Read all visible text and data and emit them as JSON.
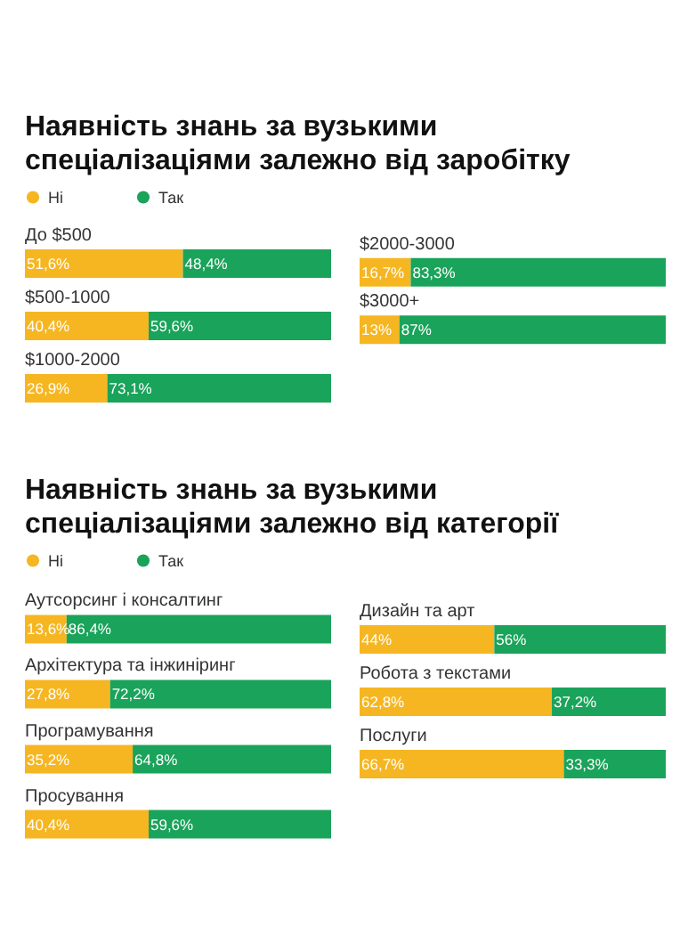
{
  "chart_data": [
    {
      "type": "bar",
      "title": "Наявність знань за вузькими спеціалізаціями залежно від заробітку",
      "categories": [
        "До $500",
        "$500-1000",
        "$1000-2000"
      ],
      "orientation": "horizontal",
      "stacked": true,
      "xlim": [
        0,
        100
      ],
      "tick_labels": false,
      "legend": "top left",
      "series": [
        {
          "name": "Ні",
          "color": "#f6b622",
          "values": [
            51.6,
            40.4,
            26.9
          ],
          "value_labels": [
            "51,6%",
            "40,4%",
            "26,9%"
          ]
        },
        {
          "name": "Так",
          "color": "#1aa35a",
          "values": [
            48.4,
            59.6,
            73.1
          ],
          "value_labels": [
            "48,4%",
            "59,6%",
            "73,1%"
          ]
        }
      ]
    },
    {
      "type": "bar",
      "categories": [
        "$2000-3000",
        "$3000+"
      ],
      "orientation": "horizontal",
      "stacked": true,
      "xlim": [
        0,
        100
      ],
      "tick_labels": false,
      "series": [
        {
          "color": "#f6b622",
          "values": [
            16.7,
            13
          ],
          "value_labels": [
            "16,7%",
            "13%"
          ]
        },
        {
          "color": "#1aa35a",
          "values": [
            83.3,
            87
          ],
          "value_labels": [
            "83,3%",
            "87%"
          ]
        }
      ]
    },
    {
      "type": "bar",
      "title": "Наявність знань за вузькими спеціалізаціями залежно від категорії",
      "categories": [
        "Аутсорсинг і консалтинг",
        "Архітектура та інжиніринг",
        "Програмування",
        "Просування"
      ],
      "orientation": "horizontal",
      "stacked": true,
      "xlim": [
        0,
        100
      ],
      "tick_labels": false,
      "legend": "top left",
      "series": [
        {
          "name": "Ні",
          "color": "#f6b622",
          "values": [
            13.6,
            27.8,
            35.2,
            40.4
          ],
          "value_labels": [
            "13,6%",
            "27,8%",
            "35,2%",
            "40,4%"
          ]
        },
        {
          "name": "Так",
          "color": "#1aa35a",
          "values": [
            86.4,
            72.2,
            64.8,
            59.6
          ],
          "value_labels": [
            "86,4%",
            "72,2%",
            "64,8%",
            "59,6%"
          ]
        }
      ]
    },
    {
      "type": "bar",
      "categories": [
        "Дизайн та арт",
        "Робота з текстами",
        "Послуги"
      ],
      "orientation": "horizontal",
      "stacked": true,
      "xlim": [
        0,
        100
      ],
      "tick_labels": false,
      "series": [
        {
          "color": "#f6b622",
          "values": [
            44,
            62.8,
            66.7
          ],
          "value_labels": [
            "44%",
            "62,8%",
            "66,7%"
          ]
        },
        {
          "color": "#1aa35a",
          "values": [
            56,
            37.2,
            33.3
          ],
          "value_labels": [
            "56%",
            "37,2%",
            "33,3%"
          ]
        }
      ]
    }
  ]
}
